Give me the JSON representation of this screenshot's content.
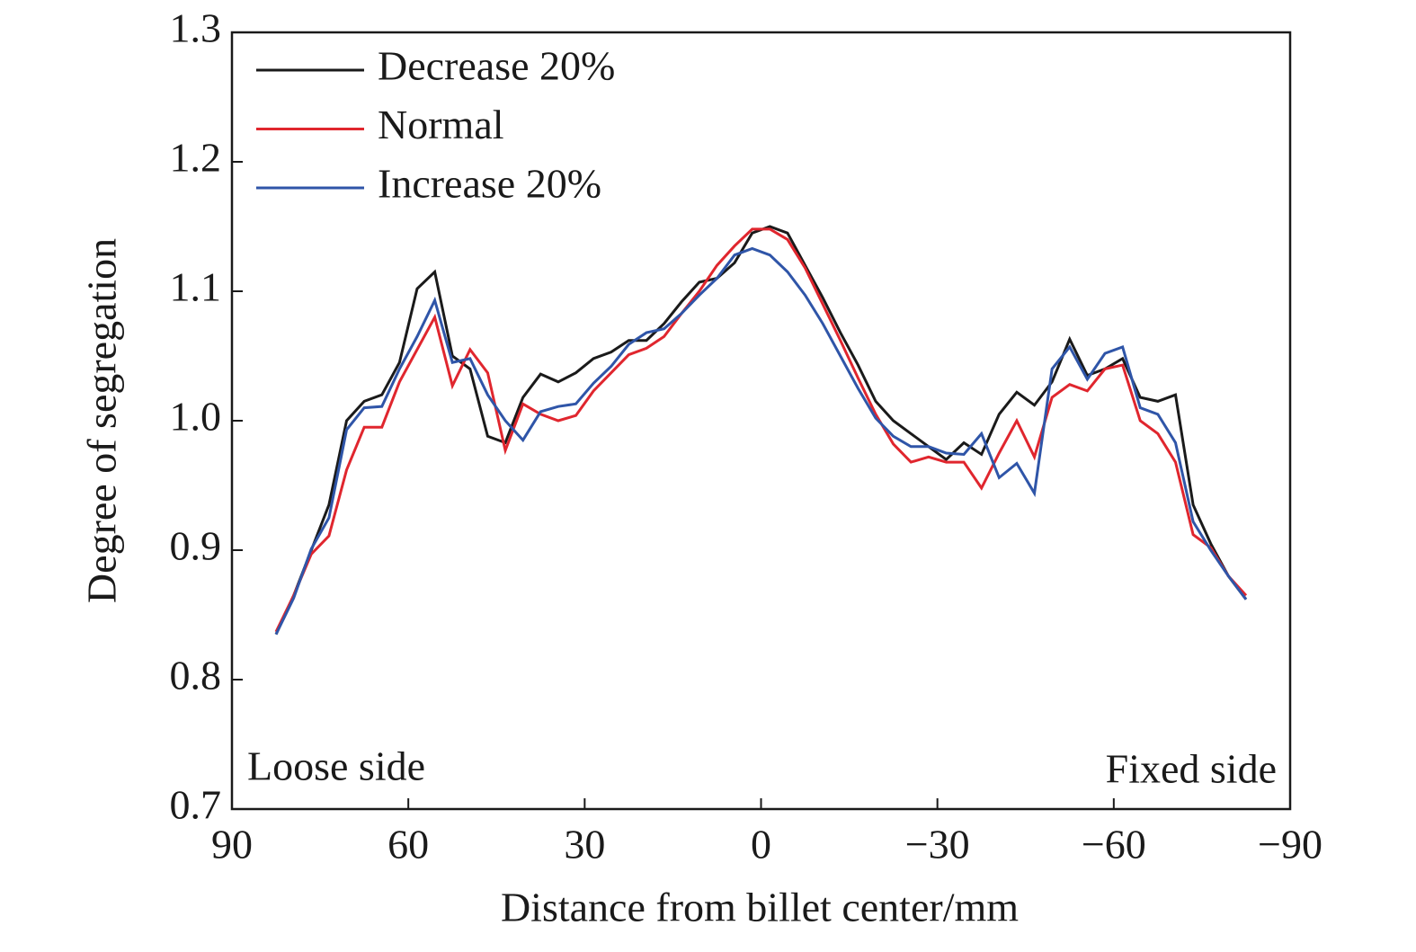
{
  "chart_data": {
    "type": "line",
    "xlabel": "Distance from billet center/mm",
    "ylabel": "Degree of segregation",
    "annotations": [
      "Loose side",
      "Fixed side"
    ],
    "legend": "upper left",
    "x": [
      82.5,
      79.5,
      76.5,
      73.5,
      70.5,
      67.5,
      64.5,
      61.5,
      58.5,
      55.5,
      52.5,
      49.5,
      46.5,
      43.5,
      40.5,
      37.5,
      34.5,
      31.5,
      28.5,
      25.5,
      22.5,
      19.5,
      16.5,
      13.5,
      10.5,
      7.5,
      4.5,
      1.5,
      -1.5,
      -4.5,
      -7.5,
      -10.5,
      -13.5,
      -16.5,
      -19.5,
      -22.5,
      -25.5,
      -28.5,
      -31.5,
      -34.5,
      -37.5,
      -40.5,
      -43.5,
      -46.5,
      -49.5,
      -52.5,
      -55.5,
      -58.5,
      -61.5,
      -64.5,
      -67.5,
      -70.5,
      -73.5,
      -76.5,
      -79.5,
      -82.5
    ],
    "series": [
      {
        "name": "Decrease 20%",
        "color": "#1a1a1a",
        "values": [
          0.835,
          0.865,
          0.9,
          0.935,
          1.0,
          1.015,
          1.02,
          1.045,
          1.102,
          1.115,
          1.05,
          1.04,
          0.988,
          0.983,
          1.018,
          1.036,
          1.03,
          1.037,
          1.048,
          1.053,
          1.062,
          1.062,
          1.075,
          1.092,
          1.107,
          1.11,
          1.122,
          1.145,
          1.15,
          1.145,
          1.12,
          1.095,
          1.068,
          1.043,
          1.015,
          1.0,
          0.99,
          0.98,
          0.97,
          0.983,
          0.974,
          1.005,
          1.022,
          1.012,
          1.03,
          1.063,
          1.035,
          1.04,
          1.048,
          1.018,
          1.015,
          1.02,
          0.935,
          0.905,
          0.88,
          0.862
        ]
      },
      {
        "name": "Normal",
        "color": "#e0262e",
        "values": [
          0.837,
          0.865,
          0.897,
          0.911,
          0.962,
          0.995,
          0.995,
          1.03,
          1.055,
          1.08,
          1.027,
          1.055,
          1.037,
          0.977,
          1.013,
          1.005,
          1.0,
          1.004,
          1.023,
          1.037,
          1.051,
          1.056,
          1.065,
          1.083,
          1.1,
          1.12,
          1.135,
          1.148,
          1.148,
          1.14,
          1.118,
          1.09,
          1.062,
          1.033,
          1.005,
          0.982,
          0.968,
          0.972,
          0.968,
          0.968,
          0.948,
          0.975,
          1.0,
          0.972,
          1.018,
          1.028,
          1.023,
          1.04,
          1.043,
          1.0,
          0.99,
          0.968,
          0.912,
          0.902,
          0.88,
          0.865
        ]
      },
      {
        "name": "Increase 20%",
        "color": "#2f55a8",
        "values": [
          0.835,
          0.863,
          0.901,
          0.925,
          0.993,
          1.01,
          1.011,
          1.04,
          1.065,
          1.093,
          1.045,
          1.048,
          1.02,
          1.0,
          0.985,
          1.007,
          1.011,
          1.013,
          1.029,
          1.042,
          1.059,
          1.068,
          1.071,
          1.083,
          1.097,
          1.11,
          1.128,
          1.133,
          1.128,
          1.115,
          1.097,
          1.075,
          1.05,
          1.025,
          1.002,
          0.988,
          0.98,
          0.98,
          0.975,
          0.974,
          0.99,
          0.956,
          0.967,
          0.944,
          1.04,
          1.057,
          1.032,
          1.052,
          1.057,
          1.01,
          1.005,
          0.983,
          0.922,
          0.9,
          0.88,
          0.862
        ]
      }
    ],
    "xlim": [
      90,
      -90
    ],
    "xticks": [
      90,
      60,
      30,
      0,
      {
        "value": -30,
        "label": "−30"
      },
      {
        "value": -60,
        "label": "−60"
      },
      {
        "value": -90,
        "label": "−90"
      }
    ],
    "ylim": [
      0.7,
      1.3
    ],
    "yticks": [
      0.7,
      0.8,
      0.9,
      {
        "value": 1,
        "label": "1.0"
      },
      1.1,
      1.2,
      1.3
    ]
  }
}
